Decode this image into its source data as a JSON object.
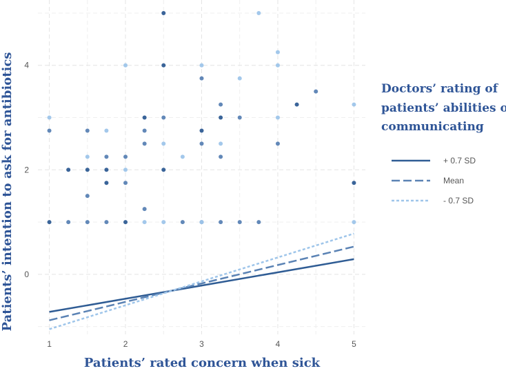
{
  "chart_data": {
    "type": "scatter",
    "xlabel": "Patients’ rated concern when sick",
    "ylabel": "Patients’ intention to ask for antibiotics",
    "xlim": [
      0.85,
      5.15
    ],
    "ylim": [
      -1.15,
      5.25
    ],
    "xticks": [
      1,
      2,
      3,
      4,
      5
    ],
    "yticks": [
      0,
      2,
      4
    ],
    "grid": true,
    "legend": {
      "title_lines": [
        "Doctors’ rating of",
        "patients’ abilities of",
        "communicating"
      ],
      "placement": "right"
    },
    "series": [
      {
        "name": "+ 0.7 SD",
        "color": "#2f5c94",
        "dash": "solid",
        "line": [
          [
            1,
            -0.72
          ],
          [
            5,
            0.29
          ]
        ],
        "points": [
          [
            1,
            1
          ],
          [
            1.25,
            2
          ],
          [
            1.5,
            2
          ],
          [
            1.75,
            2
          ],
          [
            1.75,
            1.75
          ],
          [
            2,
            1
          ],
          [
            2.25,
            3
          ],
          [
            2.5,
            4
          ],
          [
            2.5,
            2
          ],
          [
            2.5,
            5
          ],
          [
            3,
            2.75
          ],
          [
            3.25,
            3
          ],
          [
            4.25,
            3.25
          ],
          [
            5,
            1.75
          ]
        ]
      },
      {
        "name": "Mean",
        "color": "#5a82b4",
        "dash": "dashed",
        "line": [
          [
            1,
            -0.88
          ],
          [
            5,
            0.53
          ]
        ],
        "points": [
          [
            1,
            2.75
          ],
          [
            1.25,
            1
          ],
          [
            1.5,
            2.75
          ],
          [
            1.5,
            1.5
          ],
          [
            1.5,
            1
          ],
          [
            1.75,
            2.25
          ],
          [
            1.75,
            1
          ],
          [
            2,
            2.25
          ],
          [
            2,
            1.75
          ],
          [
            2.25,
            2.75
          ],
          [
            2.25,
            2.5
          ],
          [
            2.25,
            1.25
          ],
          [
            2.5,
            3
          ],
          [
            2.75,
            1
          ],
          [
            3,
            3.75
          ],
          [
            3,
            2.5
          ],
          [
            3,
            1
          ],
          [
            3.25,
            3.25
          ],
          [
            3.25,
            2.25
          ],
          [
            3.25,
            1
          ],
          [
            3.5,
            3
          ],
          [
            3.5,
            1
          ],
          [
            3.75,
            1
          ],
          [
            4,
            2.5
          ],
          [
            4.5,
            3.5
          ]
        ]
      },
      {
        "name": "- 0.7 SD",
        "color": "#9ec5ea",
        "dash": "dotted",
        "line": [
          [
            1,
            -1.05
          ],
          [
            5,
            0.78
          ]
        ],
        "points": [
          [
            1,
            3
          ],
          [
            1.5,
            2.25
          ],
          [
            1.75,
            2.75
          ],
          [
            2,
            4
          ],
          [
            2,
            2
          ],
          [
            2.25,
            1
          ],
          [
            2.5,
            2.5
          ],
          [
            2.5,
            1
          ],
          [
            2.75,
            2.25
          ],
          [
            3,
            4
          ],
          [
            3,
            1
          ],
          [
            3.25,
            2.5
          ],
          [
            3.5,
            3.75
          ],
          [
            3.75,
            5
          ],
          [
            4,
            4.25
          ],
          [
            4,
            4
          ],
          [
            4,
            3
          ],
          [
            5,
            3.25
          ],
          [
            5,
            1
          ]
        ]
      }
    ]
  }
}
